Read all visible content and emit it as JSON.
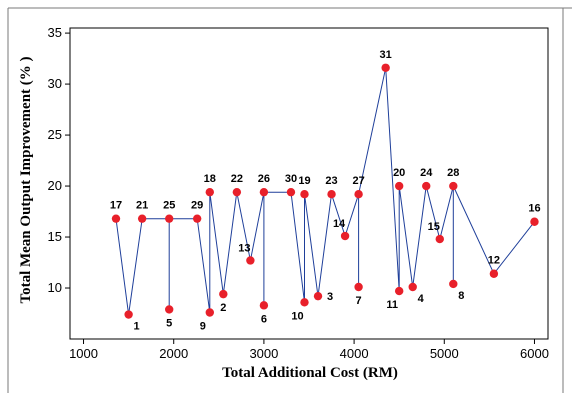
{
  "chart_data": {
    "type": "scatter",
    "xlabel": "Total Additional Cost (RM)",
    "ylabel": "Total Mean Output Improvement (% )",
    "xlim": [
      850,
      6150
    ],
    "ylim": [
      5,
      35.5
    ],
    "x_ticks": [
      1000,
      2000,
      3000,
      4000,
      5000,
      6000
    ],
    "y_ticks": [
      10,
      15,
      20,
      25,
      30,
      35
    ],
    "grid": false,
    "legend": "none",
    "colors": {
      "point": "#e8202a",
      "line": "#1f3f9a",
      "axis": "#000000",
      "frame": "#7a7a7a"
    },
    "points": [
      {
        "id": "17",
        "x": 1360,
        "y": 16.8,
        "label_pos": "above"
      },
      {
        "id": "1",
        "x": 1500,
        "y": 7.4,
        "label_pos": "below-right"
      },
      {
        "id": "21",
        "x": 1650,
        "y": 16.8,
        "label_pos": "above"
      },
      {
        "id": "25",
        "x": 1950,
        "y": 16.8,
        "label_pos": "above"
      },
      {
        "id": "5",
        "x": 1950,
        "y": 7.9,
        "label_pos": "below"
      },
      {
        "id": "29",
        "x": 2260,
        "y": 16.8,
        "label_pos": "above"
      },
      {
        "id": "18",
        "x": 2400,
        "y": 19.4,
        "label_pos": "above"
      },
      {
        "id": "9",
        "x": 2400,
        "y": 7.6,
        "label_pos": "below-left"
      },
      {
        "id": "2",
        "x": 2550,
        "y": 9.4,
        "label_pos": "below"
      },
      {
        "id": "22",
        "x": 2700,
        "y": 19.4,
        "label_pos": "above"
      },
      {
        "id": "13",
        "x": 2850,
        "y": 12.7,
        "label_pos": "above-left"
      },
      {
        "id": "26",
        "x": 3000,
        "y": 19.4,
        "label_pos": "above"
      },
      {
        "id": "6",
        "x": 3000,
        "y": 8.3,
        "label_pos": "below"
      },
      {
        "id": "30",
        "x": 3300,
        "y": 19.4,
        "label_pos": "above"
      },
      {
        "id": "19",
        "x": 3450,
        "y": 19.2,
        "label_pos": "above"
      },
      {
        "id": "10",
        "x": 3450,
        "y": 8.6,
        "label_pos": "below-left"
      },
      {
        "id": "3",
        "x": 3600,
        "y": 9.2,
        "label_pos": "right"
      },
      {
        "id": "23",
        "x": 3750,
        "y": 19.2,
        "label_pos": "above"
      },
      {
        "id": "14",
        "x": 3900,
        "y": 15.1,
        "label_pos": "above-left"
      },
      {
        "id": "27",
        "x": 4050,
        "y": 19.2,
        "label_pos": "above"
      },
      {
        "id": "7",
        "x": 4050,
        "y": 10.1,
        "label_pos": "below"
      },
      {
        "id": "31",
        "x": 4350,
        "y": 31.6,
        "label_pos": "above"
      },
      {
        "id": "20",
        "x": 4500,
        "y": 20.0,
        "label_pos": "above"
      },
      {
        "id": "11",
        "x": 4500,
        "y": 9.7,
        "label_pos": "below-left"
      },
      {
        "id": "4",
        "x": 4650,
        "y": 10.1,
        "label_pos": "below-right"
      },
      {
        "id": "24",
        "x": 4800,
        "y": 20.0,
        "label_pos": "above"
      },
      {
        "id": "15",
        "x": 4950,
        "y": 14.8,
        "label_pos": "above-left"
      },
      {
        "id": "28",
        "x": 5100,
        "y": 20.0,
        "label_pos": "above"
      },
      {
        "id": "8",
        "x": 5100,
        "y": 10.4,
        "label_pos": "below-right"
      },
      {
        "id": "12",
        "x": 5550,
        "y": 11.4,
        "label_pos": "above"
      },
      {
        "id": "16",
        "x": 6000,
        "y": 16.5,
        "label_pos": "above"
      }
    ],
    "line_order": [
      "17",
      "1",
      "21",
      "25",
      "5",
      "25",
      "29",
      "9",
      "18",
      "2",
      "22",
      "13",
      "26",
      "6",
      "26",
      "30",
      "10",
      "19",
      "3",
      "23",
      "14",
      "27",
      "7",
      "27",
      "31",
      "11",
      "20",
      "4",
      "24",
      "15",
      "28",
      "8",
      "28",
      "12",
      "16"
    ]
  }
}
